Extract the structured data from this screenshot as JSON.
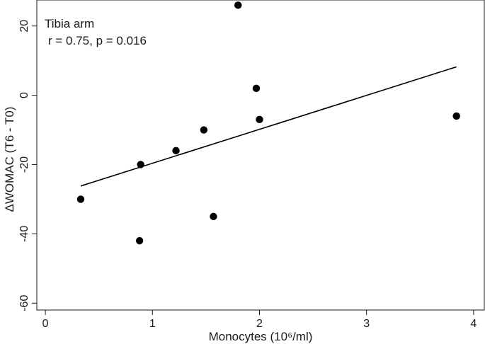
{
  "chart_data": {
    "type": "scatter",
    "title": "",
    "xlabel": "Monocytes (10⁶/ml)",
    "ylabel": "ΔWOMAC (T6 - T0)",
    "xlim": [
      -0.08,
      4.1
    ],
    "ylim": [
      -62,
      27.5
    ],
    "xticks": [
      0,
      1,
      2,
      3,
      4
    ],
    "yticks": [
      20,
      0,
      -20,
      -40,
      -60
    ],
    "xtick_labels": [
      "0",
      "1",
      "2",
      "3",
      "4"
    ],
    "ytick_labels": [
      "20",
      "0",
      "-20",
      "-40",
      "-60"
    ],
    "grid": false,
    "annotations": [
      "Tibia arm",
      "r = 0.75, p = 0.016"
    ],
    "points": [
      {
        "x": 0.33,
        "y": -30
      },
      {
        "x": 0.88,
        "y": -42
      },
      {
        "x": 0.89,
        "y": -20
      },
      {
        "x": 1.22,
        "y": -16
      },
      {
        "x": 1.48,
        "y": -10
      },
      {
        "x": 1.57,
        "y": -35
      },
      {
        "x": 1.8,
        "y": 26
      },
      {
        "x": 1.97,
        "y": 2
      },
      {
        "x": 2.0,
        "y": -7
      },
      {
        "x": 3.84,
        "y": -6
      }
    ],
    "fit_line": {
      "x": [
        0.33,
        3.84
      ],
      "y": [
        -26.2,
        8.2
      ]
    },
    "colors": {
      "marker": "#000000",
      "line": "#000000",
      "axes": "#1a1a1a"
    }
  }
}
